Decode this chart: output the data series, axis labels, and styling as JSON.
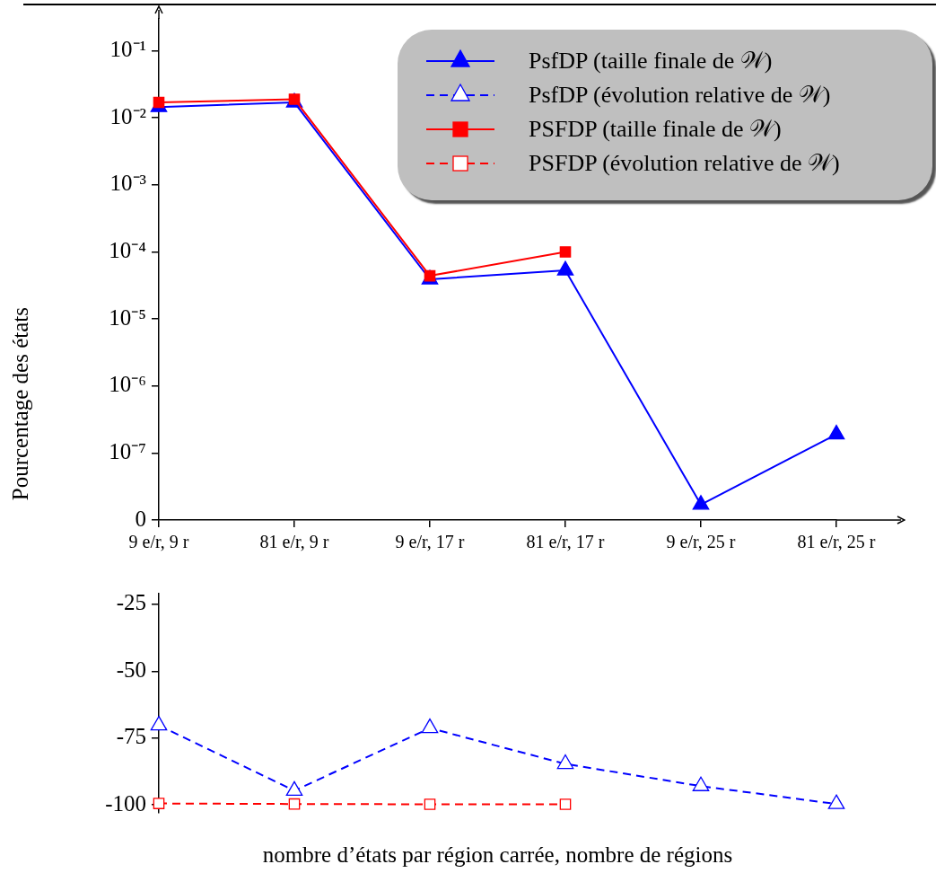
{
  "chart_data": [
    {
      "type": "line",
      "ylabel": "Pourcentage des états",
      "categories": [
        "9 e/r, 9 r",
        "81 e/r, 9 r",
        "9 e/r, 17 r",
        "81 e/r, 17 r",
        "9 e/r, 25 r",
        "81 e/r, 25 r"
      ],
      "series": [
        {
          "name": "PsfDP (taille finale de 𝒲)",
          "color": "#0000ff",
          "marker": "triangle",
          "line_style": "solid",
          "values": [
            0.0145,
            0.017,
            3.9e-05,
            5.3e-05,
            1.7e-08,
            1.9e-07
          ]
        },
        {
          "name": "PSFDP (taille finale de 𝒲)",
          "color": "#ff0000",
          "marker": "square",
          "line_style": "solid",
          "values": [
            0.017,
            0.019,
            4.4e-05,
            0.0001,
            null,
            null
          ]
        }
      ],
      "log": "y",
      "ylim": [
        1e-08,
        0.3
      ],
      "yticks": [
        {
          "value": 1e-08,
          "label": "0"
        },
        {
          "value": 1e-07,
          "label": "10⁻⁷"
        },
        {
          "value": 1e-06,
          "label": "10⁻⁶"
        },
        {
          "value": 1e-05,
          "label": "10⁻⁵"
        },
        {
          "value": 0.0001,
          "label": "10⁻⁴"
        },
        {
          "value": 0.001,
          "label": "10⁻³"
        },
        {
          "value": 0.01,
          "label": "10⁻²"
        },
        {
          "value": 0.1,
          "label": "10⁻¹"
        }
      ],
      "grid": false,
      "legend": "top right"
    },
    {
      "type": "line",
      "xlabel": "nombre d’états par région carrée, nombre de régions",
      "categories": [
        null,
        null,
        null,
        null,
        null,
        null
      ],
      "series": [
        {
          "name": "PsfDP (évolution relative de 𝒲)",
          "color": "#0000ff",
          "marker": "triangle",
          "line_style": "dashed",
          "values": [
            -70.3,
            -94.7,
            -71.3,
            -84.7,
            -93,
            -99.7
          ]
        },
        {
          "name": "PSFDP (évolution relative de 𝒲)",
          "color": "#ff0000",
          "marker": "square",
          "line_style": "dashed",
          "values": [
            -99.5,
            -99.7,
            -99.8,
            -99.8,
            null,
            null
          ]
        }
      ],
      "ylim": [
        -103,
        -21
      ],
      "yticks": [
        -100,
        -75,
        -50,
        -25
      ],
      "grid": false,
      "legend": "top right",
      "tick_labels": "y"
    }
  ]
}
